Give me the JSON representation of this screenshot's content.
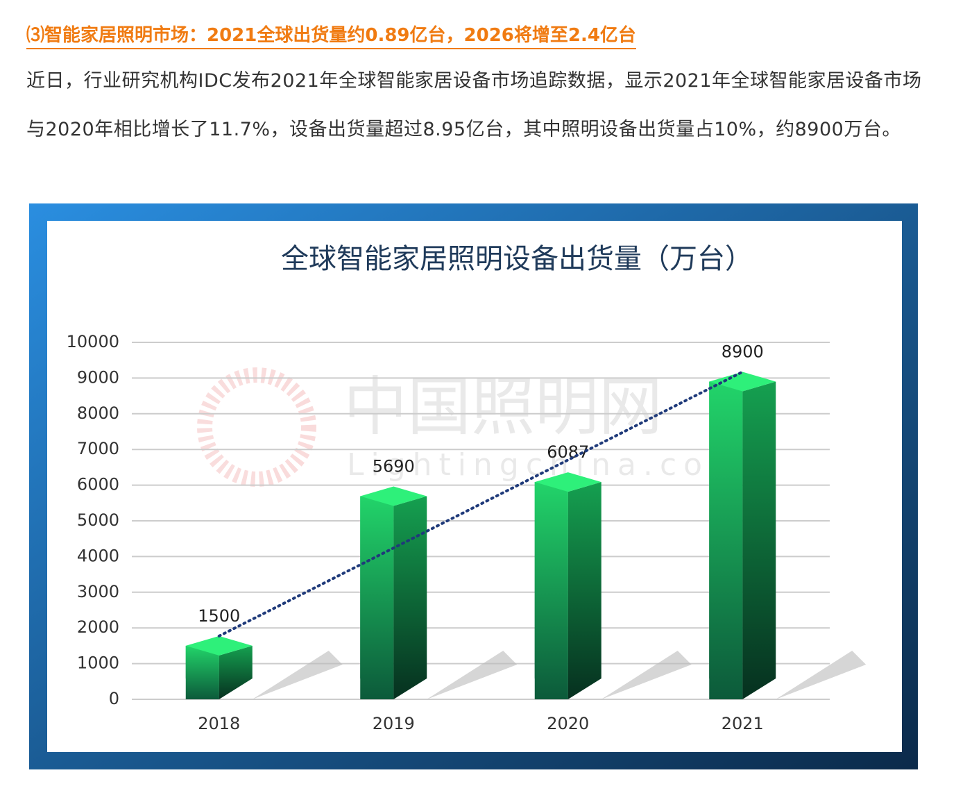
{
  "heading": "⑶智能家居照明市场：2021全球出货量约0.89亿台，2026将增至2.4亿台",
  "paragraph": "近日，行业研究机构IDC发布2021年全球智能家居设备市场追踪数据，显示2021年全球智能家居设备市场与2020年相比增长了11.7%，设备出货量超过8.95亿台，其中照明设备出货量占10%，约8900万台。",
  "chart_data": {
    "type": "bar",
    "title": "全球智能家居照明设备出货量（万台）",
    "categories": [
      "2018",
      "2019",
      "2020",
      "2021"
    ],
    "values": [
      1500,
      5690,
      6087,
      8900
    ],
    "color": "#1fa85a",
    "ylim": [
      0,
      10000
    ],
    "yticks": [
      0,
      1000,
      2000,
      3000,
      4000,
      5000,
      6000,
      7000,
      8000,
      9000,
      10000
    ],
    "grid": true,
    "trendline": true,
    "watermark": [
      "中国照明网",
      "Lightingchina.com"
    ]
  }
}
